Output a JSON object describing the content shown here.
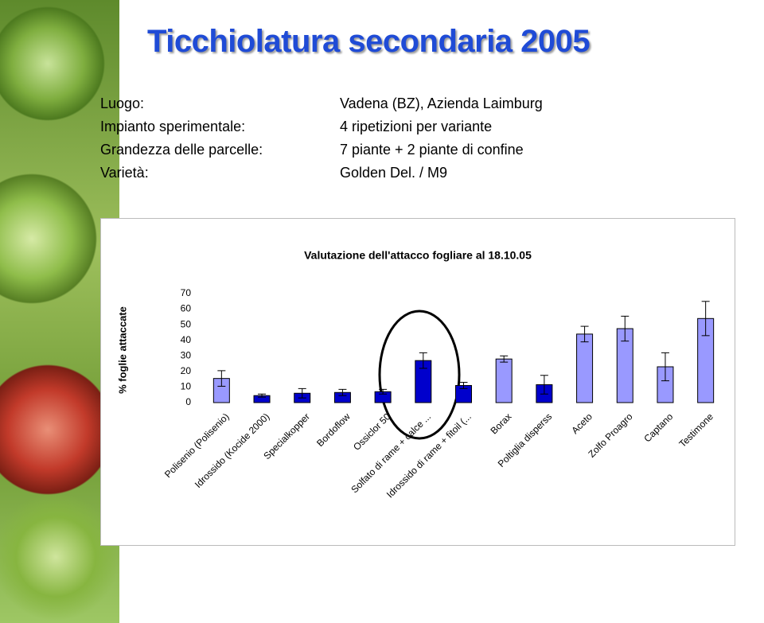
{
  "title": "Ticchiolatura secondaria 2005",
  "info": [
    {
      "label": "Luogo:",
      "value": "Vadena (BZ), Azienda Laimburg"
    },
    {
      "label": "Impianto sperimentale:",
      "value": "4 ripetizioni per variante"
    },
    {
      "label": "Grandezza delle parcelle:",
      "value": "7 piante + 2 piante di confine"
    },
    {
      "label": "Varietà:",
      "value": "Golden Del. / M9"
    }
  ],
  "chart_data": {
    "type": "bar",
    "title": "Valutazione dell'attacco fogliare al 18.10.05",
    "y_label": "% foglie attaccate",
    "categories": [
      "Polisenio (Polisenio)",
      "Idrossido (Kocide 2000)",
      "Specialkopper",
      "Bordoflow",
      "Ossiclor 50",
      "Solfato di rame + calce ...",
      "Idrossido di rame + fitoil (...",
      "Borax",
      "Poltiglia disperss",
      "Aceto",
      "Zolfo Proagro",
      "Captano",
      "Testimone"
    ],
    "values": [
      15.5,
      4.5,
      6,
      6.5,
      7,
      27,
      11,
      28,
      11.5,
      44,
      47.5,
      23,
      54
    ],
    "errors": [
      5,
      1,
      3,
      2,
      1.5,
      5,
      2,
      2,
      6,
      5,
      8,
      9,
      11
    ],
    "colors": [
      "#9999ff",
      "#0000cc",
      "#0000cc",
      "#0000cc",
      "#0000cc",
      "#0000cc",
      "#0000cc",
      "#9999ff",
      "#0000cc",
      "#9999ff",
      "#9999ff",
      "#9999ff",
      "#9999ff"
    ],
    "ylim": [
      0,
      70
    ],
    "yticks": [
      0,
      10,
      20,
      30,
      40,
      50,
      60,
      70
    ],
    "grid": false
  }
}
